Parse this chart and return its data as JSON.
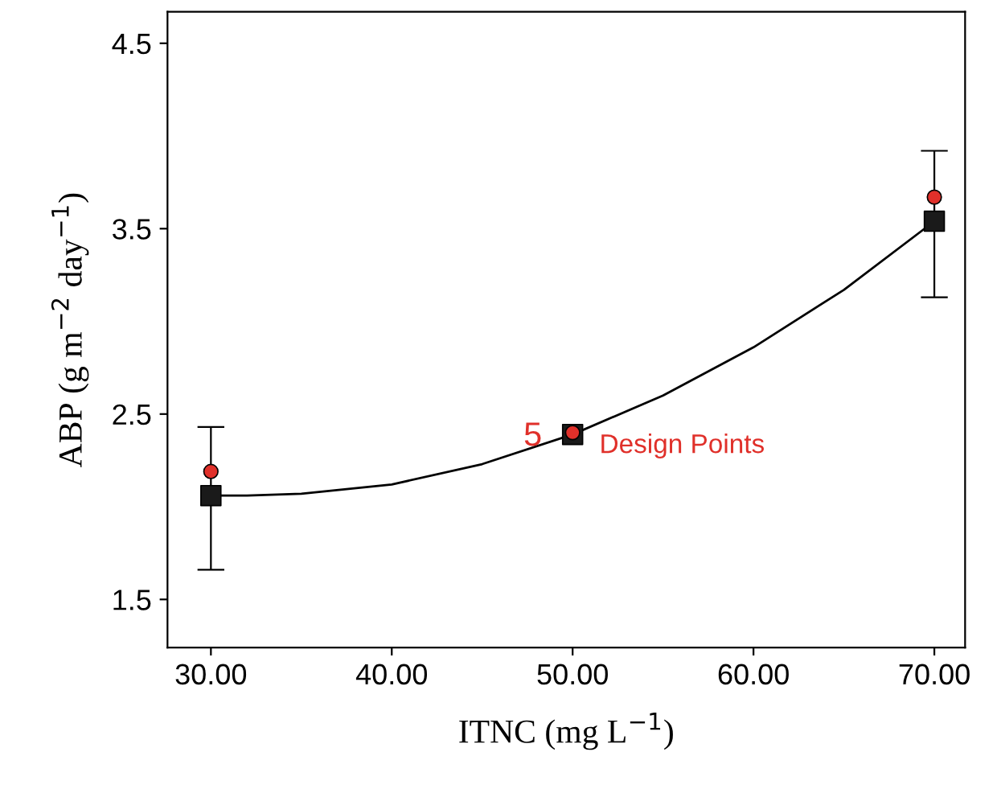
{
  "chart_data": {
    "type": "scatter",
    "xlabel": "ITNC (mg L$^{−1}$)",
    "ylabel": "ABP (g m$^{−2}$ day$^{−1}$)",
    "xlim": [
      27.6,
      71.7
    ],
    "ylim": [
      1.24,
      4.67
    ],
    "xticks": [
      {
        "value": 30,
        "label": "30.00"
      },
      {
        "value": 40,
        "label": "40.00"
      },
      {
        "value": 50,
        "label": "50.00"
      },
      {
        "value": 60,
        "label": "60.00"
      },
      {
        "value": 70,
        "label": "70.00"
      }
    ],
    "yticks": [
      1.5,
      2.5,
      3.5,
      4.5
    ],
    "grid": false,
    "legend": false,
    "series": [
      {
        "type": "line",
        "color": "#000000",
        "marker": "none",
        "x": [
          30,
          32,
          35,
          40,
          45,
          50,
          55,
          60,
          65,
          70
        ],
        "values": [
          2.06,
          2.06,
          2.07,
          2.12,
          2.23,
          2.39,
          2.6,
          2.86,
          3.17,
          3.54
        ]
      },
      {
        "color": "#1a1a1a",
        "marker": "square",
        "x": [
          30,
          50,
          70
        ],
        "values": [
          2.06,
          2.39,
          3.54
        ],
        "errors": [
          [
            1.66,
            2.43
          ],
          null,
          [
            3.13,
            3.92
          ]
        ]
      },
      {
        "color": "#e0302a",
        "marker": "circle",
        "x": [
          30,
          50,
          70
        ],
        "values": [
          2.19,
          2.4,
          3.67
        ]
      }
    ],
    "annotations": [
      {
        "text": "5",
        "x": 50,
        "y": 2.4
      },
      {
        "text": "Design Points",
        "x": 50,
        "y": 2.4
      }
    ]
  }
}
